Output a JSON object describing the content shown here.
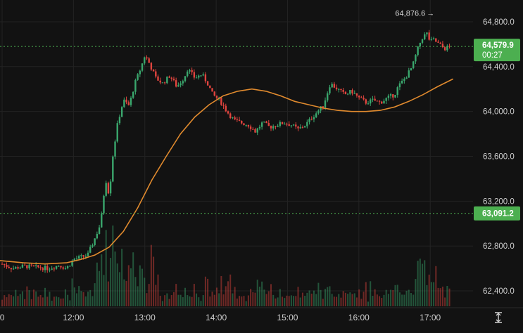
{
  "chart_data": {
    "type": "candlestick",
    "x_axis": {
      "ticks": [
        {
          "label": "0",
          "hour": 11.0
        },
        {
          "label": "12:00",
          "hour": 12.0
        },
        {
          "label": "13:00",
          "hour": 13.0
        },
        {
          "label": "14:00",
          "hour": 14.0
        },
        {
          "label": "15:00",
          "hour": 15.0
        },
        {
          "label": "16:00",
          "hour": 16.0
        },
        {
          "label": "17:00",
          "hour": 17.0
        }
      ],
      "range": [
        10.97,
        17.6
      ]
    },
    "y_axis": {
      "ticks": [
        {
          "label": "64,800.0",
          "value": 64800
        },
        {
          "label": "64,400.0",
          "value": 64400
        },
        {
          "label": "64,000.0",
          "value": 64000
        },
        {
          "label": "63,600.0",
          "value": 63600
        },
        {
          "label": "63,200.0",
          "value": 63200
        },
        {
          "label": "62,800.0",
          "value": 62800
        },
        {
          "label": "62,400.0",
          "value": 62400
        }
      ],
      "range": [
        62300,
        64900
      ]
    },
    "price_series": {
      "points": [
        [
          11.0,
          62640
        ],
        [
          11.15,
          62600
        ],
        [
          11.3,
          62620
        ],
        [
          11.5,
          62610
        ],
        [
          11.65,
          62600
        ],
        [
          11.8,
          62630
        ],
        [
          11.9,
          62600
        ],
        [
          12.0,
          62680
        ],
        [
          12.1,
          62700
        ],
        [
          12.2,
          62720
        ],
        [
          12.3,
          62870
        ],
        [
          12.38,
          63000
        ],
        [
          12.45,
          63400
        ],
        [
          12.5,
          63250
        ],
        [
          12.55,
          63600
        ],
        [
          12.62,
          63900
        ],
        [
          12.7,
          64100
        ],
        [
          12.78,
          64050
        ],
        [
          12.86,
          64250
        ],
        [
          12.95,
          64400
        ],
        [
          13.0,
          64500
        ],
        [
          13.07,
          64420
        ],
        [
          13.15,
          64300
        ],
        [
          13.25,
          64250
        ],
        [
          13.35,
          64320
        ],
        [
          13.45,
          64220
        ],
        [
          13.55,
          64300
        ],
        [
          13.6,
          64380
        ],
        [
          13.7,
          64300
        ],
        [
          13.8,
          64330
        ],
        [
          13.88,
          64250
        ],
        [
          13.95,
          64150
        ],
        [
          14.05,
          64100
        ],
        [
          14.15,
          64000
        ],
        [
          14.25,
          63920
        ],
        [
          14.35,
          63900
        ],
        [
          14.45,
          63880
        ],
        [
          14.55,
          63820
        ],
        [
          14.65,
          63900
        ],
        [
          14.75,
          63860
        ],
        [
          14.85,
          63880
        ],
        [
          14.95,
          63900
        ],
        [
          15.05,
          63880
        ],
        [
          15.15,
          63840
        ],
        [
          15.25,
          63880
        ],
        [
          15.35,
          63950
        ],
        [
          15.45,
          64020
        ],
        [
          15.5,
          64050
        ],
        [
          15.6,
          64250
        ],
        [
          15.7,
          64200
        ],
        [
          15.8,
          64150
        ],
        [
          15.9,
          64180
        ],
        [
          16.0,
          64120
        ],
        [
          16.1,
          64080
        ],
        [
          16.2,
          64100
        ],
        [
          16.3,
          64080
        ],
        [
          16.4,
          64120
        ],
        [
          16.5,
          64150
        ],
        [
          16.55,
          64220
        ],
        [
          16.65,
          64300
        ],
        [
          16.75,
          64400
        ],
        [
          16.82,
          64550
        ],
        [
          16.88,
          64650
        ],
        [
          16.95,
          64700
        ],
        [
          17.0,
          64620
        ],
        [
          17.05,
          64640
        ],
        [
          17.12,
          64600
        ],
        [
          17.2,
          64560
        ],
        [
          17.28,
          64580
        ]
      ]
    },
    "moving_average": {
      "color": "#e08a2e",
      "points": [
        [
          10.97,
          62670
        ],
        [
          11.3,
          62650
        ],
        [
          11.6,
          62640
        ],
        [
          11.9,
          62650
        ],
        [
          12.1,
          62680
        ],
        [
          12.3,
          62720
        ],
        [
          12.5,
          62790
        ],
        [
          12.7,
          62930
        ],
        [
          12.9,
          63140
        ],
        [
          13.1,
          63390
        ],
        [
          13.3,
          63600
        ],
        [
          13.5,
          63800
        ],
        [
          13.7,
          63950
        ],
        [
          13.9,
          64060
        ],
        [
          14.1,
          64140
        ],
        [
          14.3,
          64180
        ],
        [
          14.5,
          64200
        ],
        [
          14.7,
          64180
        ],
        [
          14.9,
          64140
        ],
        [
          15.1,
          64090
        ],
        [
          15.3,
          64060
        ],
        [
          15.5,
          64030
        ],
        [
          15.7,
          64010
        ],
        [
          15.9,
          64000
        ],
        [
          16.1,
          64000
        ],
        [
          16.3,
          64010
        ],
        [
          16.5,
          64040
        ],
        [
          16.7,
          64090
        ],
        [
          16.9,
          64150
        ],
        [
          17.1,
          64220
        ],
        [
          17.32,
          64290
        ]
      ]
    },
    "high_marker": {
      "label": "64,876.6",
      "arrow": "→",
      "hour": 17.05,
      "value": 64876.6
    },
    "current_price": {
      "label": "64,579.9",
      "countdown": "00:27",
      "value": 64579.9,
      "color": "#4caf50"
    },
    "reference_line": {
      "label": "63,091.2",
      "value": 63091.2,
      "color": "#4caf50"
    },
    "colors": {
      "up": "#3aa76d",
      "down": "#e0443e",
      "grid": "#232323",
      "background": "#121212"
    },
    "grid": true
  },
  "ui": {
    "reset_icon": "arrows-vertical-icon"
  }
}
